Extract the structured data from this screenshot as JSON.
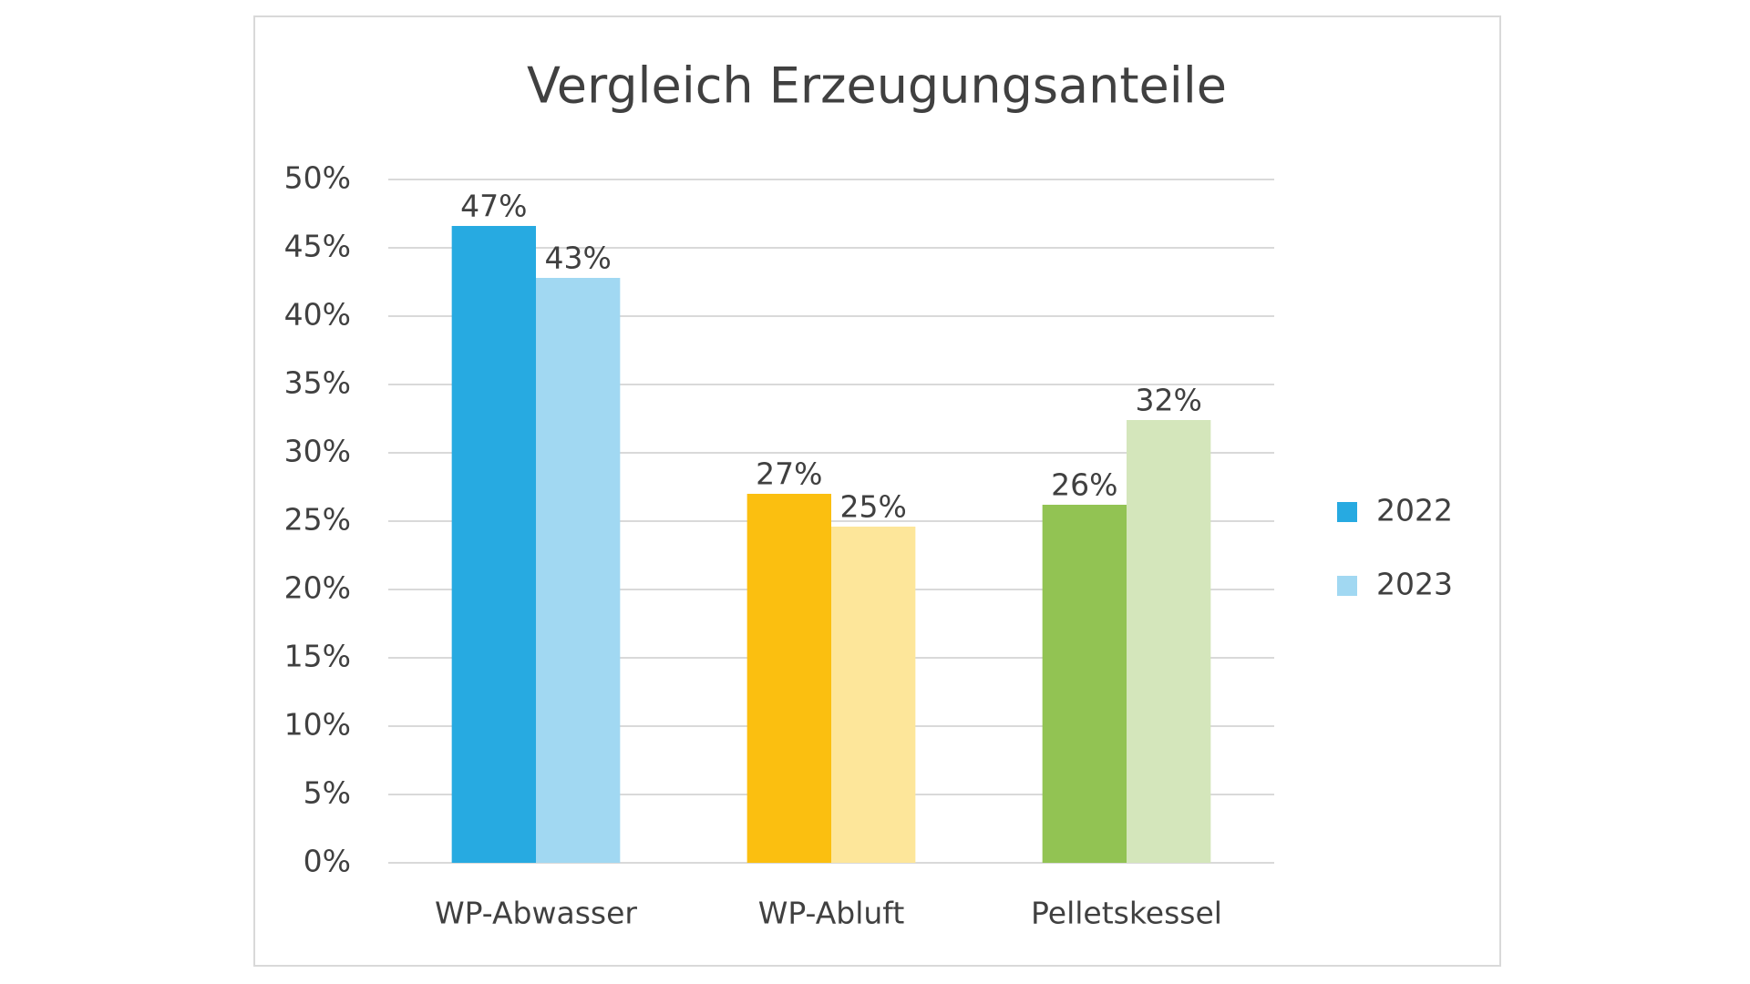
{
  "chart_data": {
    "type": "bar",
    "title": "Vergleich Erzeugungsanteile",
    "categories": [
      "WP-Abwasser",
      "WP-Abluft",
      "Pelletskessel"
    ],
    "series": [
      {
        "name": "2022",
        "color": "#27aae1",
        "colors": [
          "#27aae1",
          "#fbbf10",
          "#92c353"
        ],
        "values": [
          46.6,
          27.0,
          26.2
        ],
        "value_labels": [
          "47%",
          "27%",
          "26%"
        ]
      },
      {
        "name": "2023",
        "color": "#a1d8f2",
        "colors": [
          "#a1d8f2",
          "#fde69a",
          "#d4e6bb"
        ],
        "values": [
          42.8,
          24.6,
          32.4
        ],
        "value_labels": [
          "43%",
          "25%",
          "32%"
        ]
      }
    ],
    "ylim": [
      0,
      50
    ],
    "yticks": [
      {
        "value": 0,
        "label": "0%"
      },
      {
        "value": 5,
        "label": "5%"
      },
      {
        "value": 10,
        "label": "10%"
      },
      {
        "value": 15,
        "label": "15%"
      },
      {
        "value": 20,
        "label": "20%"
      },
      {
        "value": 25,
        "label": "25%"
      },
      {
        "value": 30,
        "label": "30%"
      },
      {
        "value": 35,
        "label": "35%"
      },
      {
        "value": 40,
        "label": "40%"
      },
      {
        "value": 45,
        "label": "45%"
      },
      {
        "value": 50,
        "label": "50%"
      }
    ],
    "grid": true,
    "legend": "right"
  }
}
